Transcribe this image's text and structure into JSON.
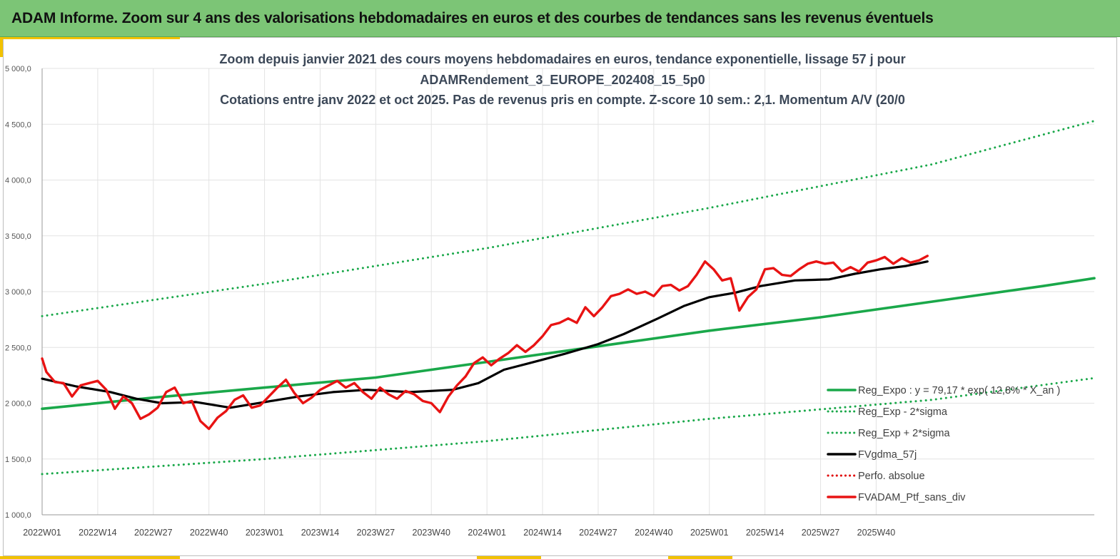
{
  "header": {
    "title": "ADAM Informe. Zoom sur 4 ans des valorisations hebdomadaires en euros et des courbes de tendances sans les revenus éventuels"
  },
  "chart_data": {
    "type": "line",
    "title_lines": [
      "Zoom depuis janvier 2021 des cours moyens hebdomadaires  en euros, tendance exponentielle, lissage 57 j pour",
      "ADAMRendement_3_EUROPE_202408_15_5p0",
      "Cotations entre janv 2022 et oct 2025. Pas de revenus pris en compte. Z-score 10 sem.: 2,1. Momentum A/V (20/0"
    ],
    "x_tick_labels": [
      "2022W01",
      "2022W14",
      "2022W27",
      "2022W40",
      "2023W01",
      "2023W14",
      "2023W27",
      "2023W40",
      "2024W01",
      "2024W14",
      "2024W27",
      "2024W40",
      "2025W01",
      "2025W14",
      "2025W27",
      "2025W40"
    ],
    "y_tick_labels": [
      "1 000,0",
      "1 500,0",
      "2 000,0",
      "2 500,0",
      "3 000,0",
      "3 500,0",
      "4 000,0",
      "4 500,0",
      "5 000,0"
    ],
    "y_ticks": [
      1000,
      1500,
      2000,
      2500,
      3000,
      3500,
      4000,
      4500,
      5000
    ],
    "ylim": [
      1000,
      5000
    ],
    "x_weeks_total": 200,
    "grid": "vertical-and-horizontal",
    "legend_placement": "bottom-right",
    "series": [
      {
        "name": "Reg_Expo : y = 79,17 * exp( 12,8% * X_an )",
        "color": "#1aa84a",
        "style": "solid",
        "points": [
          [
            0,
            1950
          ],
          [
            26,
            2050
          ],
          [
            52,
            2140
          ],
          [
            78,
            2230
          ],
          [
            104,
            2370
          ],
          [
            130,
            2510
          ],
          [
            156,
            2650
          ],
          [
            182,
            2770
          ],
          [
            208,
            2910
          ],
          [
            234,
            3050
          ],
          [
            246,
            3120
          ]
        ]
      },
      {
        "name": "Reg_Exp - 2*sigma",
        "color": "#1aa84a",
        "style": "dotted",
        "points": [
          [
            0,
            1365
          ],
          [
            52,
            1500
          ],
          [
            104,
            1660
          ],
          [
            156,
            1860
          ],
          [
            208,
            2030
          ],
          [
            246,
            2225
          ]
        ]
      },
      {
        "name": "Reg_Exp + 2*sigma",
        "color": "#1aa84a",
        "style": "dotted",
        "points": [
          [
            0,
            2780
          ],
          [
            52,
            3070
          ],
          [
            104,
            3390
          ],
          [
            156,
            3750
          ],
          [
            208,
            4140
          ],
          [
            246,
            4530
          ]
        ]
      },
      {
        "name": "FVgdma_57j",
        "color": "#000000",
        "style": "solid",
        "points": [
          [
            0,
            2220
          ],
          [
            8,
            2150
          ],
          [
            16,
            2100
          ],
          [
            22,
            2040
          ],
          [
            28,
            2000
          ],
          [
            36,
            2010
          ],
          [
            44,
            1960
          ],
          [
            52,
            2010
          ],
          [
            60,
            2060
          ],
          [
            68,
            2100
          ],
          [
            76,
            2120
          ],
          [
            86,
            2100
          ],
          [
            96,
            2120
          ],
          [
            102,
            2180
          ],
          [
            108,
            2300
          ],
          [
            114,
            2360
          ],
          [
            122,
            2440
          ],
          [
            130,
            2530
          ],
          [
            136,
            2620
          ],
          [
            144,
            2760
          ],
          [
            150,
            2870
          ],
          [
            156,
            2950
          ],
          [
            162,
            2990
          ],
          [
            168,
            3050
          ],
          [
            176,
            3100
          ],
          [
            184,
            3110
          ],
          [
            190,
            3160
          ],
          [
            196,
            3200
          ],
          [
            202,
            3230
          ],
          [
            207,
            3270
          ]
        ]
      },
      {
        "name": "Perfo. absolue",
        "color": "#e00000",
        "style": "dotted",
        "points": []
      },
      {
        "name": "FVADAM_Ptf_sans_div",
        "color": "#e81313",
        "style": "solid",
        "points": [
          [
            0,
            2400
          ],
          [
            1,
            2280
          ],
          [
            3,
            2190
          ],
          [
            5,
            2180
          ],
          [
            7,
            2060
          ],
          [
            9,
            2160
          ],
          [
            11,
            2180
          ],
          [
            13,
            2200
          ],
          [
            15,
            2120
          ],
          [
            17,
            1950
          ],
          [
            19,
            2060
          ],
          [
            21,
            2000
          ],
          [
            23,
            1860
          ],
          [
            25,
            1900
          ],
          [
            27,
            1960
          ],
          [
            29,
            2100
          ],
          [
            31,
            2140
          ],
          [
            33,
            2000
          ],
          [
            35,
            2020
          ],
          [
            37,
            1840
          ],
          [
            39,
            1770
          ],
          [
            41,
            1870
          ],
          [
            43,
            1930
          ],
          [
            45,
            2030
          ],
          [
            47,
            2070
          ],
          [
            49,
            1960
          ],
          [
            51,
            1980
          ],
          [
            53,
            2060
          ],
          [
            55,
            2140
          ],
          [
            57,
            2210
          ],
          [
            59,
            2090
          ],
          [
            61,
            2000
          ],
          [
            63,
            2050
          ],
          [
            65,
            2120
          ],
          [
            67,
            2160
          ],
          [
            69,
            2200
          ],
          [
            71,
            2140
          ],
          [
            73,
            2180
          ],
          [
            75,
            2100
          ],
          [
            77,
            2040
          ],
          [
            79,
            2140
          ],
          [
            81,
            2080
          ],
          [
            83,
            2040
          ],
          [
            85,
            2110
          ],
          [
            87,
            2080
          ],
          [
            89,
            2020
          ],
          [
            91,
            2000
          ],
          [
            93,
            1920
          ],
          [
            95,
            2060
          ],
          [
            97,
            2160
          ],
          [
            99,
            2240
          ],
          [
            101,
            2360
          ],
          [
            103,
            2410
          ],
          [
            105,
            2340
          ],
          [
            107,
            2400
          ],
          [
            109,
            2450
          ],
          [
            111,
            2520
          ],
          [
            113,
            2460
          ],
          [
            115,
            2520
          ],
          [
            117,
            2600
          ],
          [
            119,
            2700
          ],
          [
            121,
            2720
          ],
          [
            123,
            2760
          ],
          [
            125,
            2720
          ],
          [
            127,
            2860
          ],
          [
            129,
            2780
          ],
          [
            131,
            2860
          ],
          [
            133,
            2960
          ],
          [
            135,
            2980
          ],
          [
            137,
            3020
          ],
          [
            139,
            2980
          ],
          [
            141,
            3000
          ],
          [
            143,
            2960
          ],
          [
            145,
            3050
          ],
          [
            147,
            3060
          ],
          [
            149,
            3010
          ],
          [
            151,
            3050
          ],
          [
            153,
            3150
          ],
          [
            155,
            3270
          ],
          [
            157,
            3200
          ],
          [
            159,
            3100
          ],
          [
            161,
            3120
          ],
          [
            163,
            2830
          ],
          [
            165,
            2950
          ],
          [
            167,
            3020
          ],
          [
            169,
            3200
          ],
          [
            171,
            3210
          ],
          [
            173,
            3150
          ],
          [
            175,
            3140
          ],
          [
            177,
            3200
          ],
          [
            179,
            3250
          ],
          [
            181,
            3270
          ],
          [
            183,
            3250
          ],
          [
            185,
            3260
          ],
          [
            187,
            3180
          ],
          [
            189,
            3220
          ],
          [
            191,
            3180
          ],
          [
            193,
            3260
          ],
          [
            195,
            3280
          ],
          [
            197,
            3310
          ],
          [
            199,
            3250
          ],
          [
            201,
            3300
          ],
          [
            203,
            3260
          ],
          [
            205,
            3280
          ],
          [
            207,
            3320
          ]
        ]
      }
    ]
  }
}
